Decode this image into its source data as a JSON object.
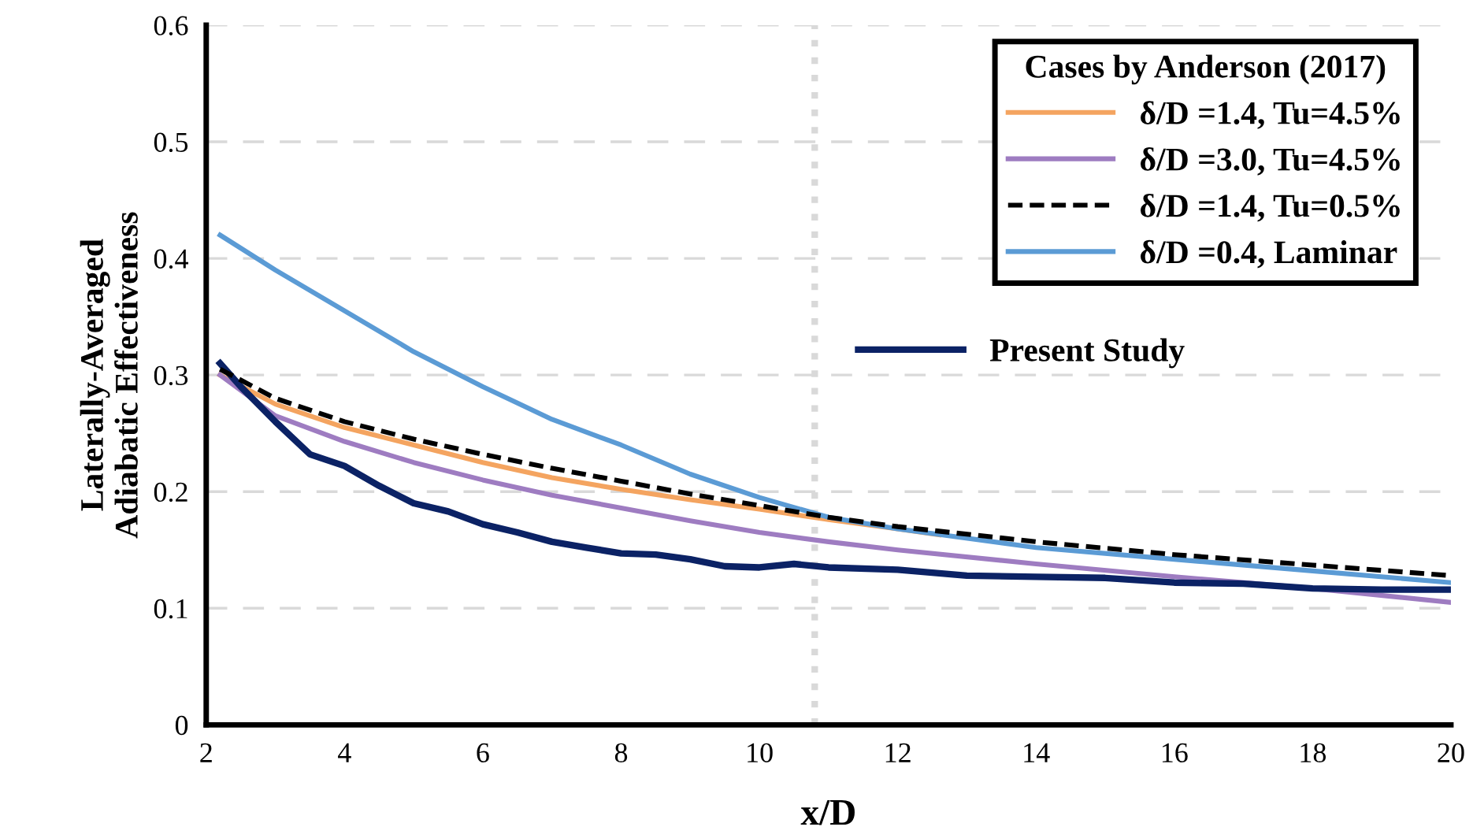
{
  "chart_data": {
    "type": "line",
    "xlabel": "x/D",
    "ylabel": "Laterally-Averaged\nAdiabatic Effectiveness",
    "legend_title": "Cases by Anderson (2017)",
    "xlim": [
      2,
      20
    ],
    "xticks": [
      2,
      4,
      6,
      8,
      10,
      12,
      14,
      16,
      18,
      20
    ],
    "ylim": [
      0,
      0.6
    ],
    "yticks": [
      0,
      0.1,
      0.2,
      0.3,
      0.4,
      0.5,
      0.6
    ],
    "grid": "y",
    "legend": "top right",
    "ref_lines": [
      {
        "axis": "x",
        "value": 10.8,
        "color": "#d9d9d9",
        "line_style": "dotted"
      }
    ],
    "series": [
      {
        "name": "δ/D =1.4, Tu=4.5%",
        "color": "#f4a460",
        "line_style": "solid",
        "x": [
          2.2,
          3,
          4,
          5,
          6,
          7,
          8,
          9,
          10,
          11,
          12,
          12.6
        ],
        "values": [
          0.3,
          0.275,
          0.255,
          0.24,
          0.225,
          0.212,
          0.202,
          0.193,
          0.185,
          0.176,
          0.168,
          0.163
        ]
      },
      {
        "name": "δ/D =3.0, Tu=4.5%",
        "color": "#9e7cc1",
        "line_style": "solid",
        "x": [
          2.2,
          3,
          4,
          5,
          6,
          7,
          8,
          9,
          10,
          11,
          12,
          14,
          16,
          18,
          20
        ],
        "values": [
          0.3,
          0.265,
          0.243,
          0.225,
          0.21,
          0.197,
          0.186,
          0.175,
          0.165,
          0.157,
          0.15,
          0.138,
          0.127,
          0.117,
          0.105
        ]
      },
      {
        "name": "δ/D =1.4, Tu=0.5%",
        "color": "#000000",
        "line_style": "dashed",
        "x": [
          2.2,
          3,
          4,
          5,
          6,
          7,
          8,
          9,
          10,
          11,
          12,
          14,
          16,
          18,
          20
        ],
        "values": [
          0.305,
          0.28,
          0.26,
          0.245,
          0.232,
          0.22,
          0.209,
          0.198,
          0.188,
          0.178,
          0.17,
          0.157,
          0.146,
          0.137,
          0.128
        ]
      },
      {
        "name": "δ/D =0.4, Laminar",
        "color": "#5b9bd5",
        "line_style": "solid",
        "x": [
          2.2,
          3,
          4,
          5,
          6,
          7,
          8,
          9,
          10,
          11,
          12,
          14,
          16,
          18,
          20
        ],
        "values": [
          0.42,
          0.39,
          0.355,
          0.32,
          0.29,
          0.262,
          0.24,
          0.215,
          0.195,
          0.178,
          0.168,
          0.152,
          0.142,
          0.132,
          0.122
        ]
      },
      {
        "name": "Present Study",
        "color": "#0b2265",
        "line_style": "solid",
        "x": [
          2.2,
          2.5,
          3,
          3.5,
          4,
          4.5,
          5,
          5.5,
          6,
          6.5,
          7,
          7.5,
          8,
          8.5,
          9,
          9.5,
          10,
          10.5,
          11,
          12,
          13,
          14,
          15,
          16,
          17,
          18,
          19,
          20
        ],
        "values": [
          0.31,
          0.29,
          0.26,
          0.232,
          0.222,
          0.205,
          0.19,
          0.183,
          0.172,
          0.165,
          0.157,
          0.152,
          0.147,
          0.146,
          0.142,
          0.136,
          0.135,
          0.138,
          0.135,
          0.133,
          0.128,
          0.127,
          0.126,
          0.122,
          0.121,
          0.117,
          0.116,
          0.116
        ]
      }
    ]
  }
}
